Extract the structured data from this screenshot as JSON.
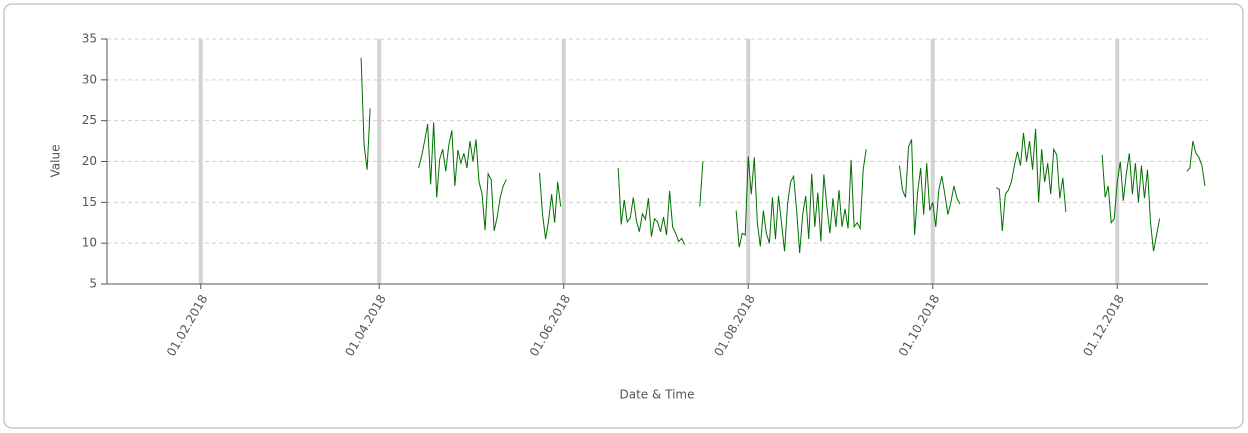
{
  "chart_data": {
    "type": "line",
    "ylabel": "Value",
    "xlabel": "Date & Time",
    "color": "#007000",
    "ylim": [
      5,
      35
    ],
    "yticks": [
      5,
      10,
      15,
      20,
      25,
      30,
      35
    ],
    "xlim": [
      "01.01.2018",
      "31.12.2018"
    ],
    "xticks": [
      "01.02.2018",
      "01.04.2018",
      "01.06.2018",
      "01.08.2018",
      "01.10.2018",
      "01.12.2018"
    ],
    "grid": true,
    "x": [
      "26.03.2018",
      "27.03.2018",
      "28.03.2018",
      "29.03.2018",
      "30.03.2018",
      "14.04.2018",
      "15.04.2018",
      "16.04.2018",
      "17.04.2018",
      "18.04.2018",
      "19.04.2018",
      "20.04.2018",
      "21.04.2018",
      "22.04.2018",
      "23.04.2018",
      "24.04.2018",
      "25.04.2018",
      "26.04.2018",
      "27.04.2018",
      "28.04.2018",
      "29.04.2018",
      "30.04.2018",
      "01.05.2018",
      "02.05.2018",
      "03.05.2018",
      "04.05.2018",
      "05.05.2018",
      "06.05.2018",
      "07.05.2018",
      "08.05.2018",
      "09.05.2018",
      "10.05.2018",
      "11.05.2018",
      "12.05.2018",
      "13.05.2018",
      "17.05.2018",
      "24.05.2018",
      "25.05.2018",
      "26.05.2018",
      "27.05.2018",
      "28.05.2018",
      "29.05.2018",
      "30.05.2018",
      "31.05.2018",
      "01.06.2018",
      "19.06.2018",
      "20.06.2018",
      "21.06.2018",
      "22.06.2018",
      "23.06.2018",
      "24.06.2018",
      "25.06.2018",
      "26.06.2018",
      "27.06.2018",
      "28.06.2018",
      "29.06.2018",
      "30.06.2018",
      "01.07.2018",
      "02.07.2018",
      "03.07.2018",
      "04.07.2018",
      "05.07.2018",
      "06.07.2018",
      "07.07.2018",
      "08.07.2018",
      "09.07.2018",
      "10.07.2018",
      "11.07.2018",
      "12.07.2018",
      "16.07.2018",
      "17.07.2018",
      "18.07.2018",
      "28.07.2018",
      "29.07.2018",
      "30.07.2018",
      "31.07.2018",
      "01.08.2018",
      "02.08.2018",
      "03.08.2018",
      "04.08.2018",
      "05.08.2018",
      "06.08.2018",
      "07.08.2018",
      "08.08.2018",
      "09.08.2018",
      "10.08.2018",
      "11.08.2018",
      "12.08.2018",
      "13.08.2018",
      "14.08.2018",
      "15.08.2018",
      "16.08.2018",
      "17.08.2018",
      "18.08.2018",
      "19.08.2018",
      "20.08.2018",
      "21.08.2018",
      "22.08.2018",
      "23.08.2018",
      "24.08.2018",
      "25.08.2018",
      "26.08.2018",
      "27.08.2018",
      "28.08.2018",
      "29.08.2018",
      "30.08.2018",
      "31.08.2018",
      "01.09.2018",
      "02.09.2018",
      "03.09.2018",
      "04.09.2018",
      "05.09.2018",
      "06.09.2018",
      "07.09.2018",
      "08.09.2018",
      "09.09.2018",
      "10.09.2018",
      "20.09.2018",
      "21.09.2018",
      "22.09.2018",
      "23.09.2018",
      "24.09.2018",
      "25.09.2018",
      "26.09.2018",
      "27.09.2018",
      "28.09.2018",
      "29.09.2018",
      "30.09.2018",
      "01.10.2018",
      "02.10.2018",
      "03.10.2018",
      "04.10.2018",
      "05.10.2018",
      "06.10.2018",
      "07.10.2018",
      "08.10.2018",
      "09.10.2018",
      "10.10.2018",
      "11.10.2018",
      "22.10.2018",
      "23.10.2018",
      "24.10.2018",
      "25.10.2018",
      "26.10.2018",
      "27.10.2018",
      "28.10.2018",
      "29.10.2018",
      "30.10.2018",
      "31.10.2018",
      "01.11.2018",
      "02.11.2018",
      "03.11.2018",
      "04.11.2018",
      "05.11.2018",
      "06.11.2018",
      "07.11.2018",
      "08.11.2018",
      "09.11.2018",
      "10.11.2018",
      "11.11.2018",
      "12.11.2018",
      "13.11.2018",
      "14.11.2018",
      "15.11.2018",
      "26.11.2018",
      "27.11.2018",
      "28.11.2018",
      "29.11.2018",
      "30.11.2018",
      "01.12.2018",
      "02.12.2018",
      "03.12.2018",
      "04.12.2018",
      "05.12.2018",
      "06.12.2018",
      "07.12.2018",
      "08.12.2018",
      "09.12.2018",
      "10.12.2018",
      "11.12.2018",
      "12.12.2018",
      "13.12.2018",
      "14.12.2018",
      "15.12.2018",
      "17.12.2018",
      "24.12.2018",
      "25.12.2018",
      "26.12.2018",
      "27.12.2018",
      "28.12.2018",
      "29.12.2018",
      "30.12.2018"
    ],
    "values": [
      32.7,
      22.0,
      19.0,
      26.5,
      null,
      19.2,
      20.6,
      22.5,
      24.6,
      17.2,
      24.8,
      15.6,
      20.3,
      21.5,
      18.8,
      22.0,
      23.8,
      17.0,
      21.4,
      19.8,
      21.0,
      19.2,
      22.5,
      20.0,
      22.7,
      17.5,
      16.0,
      11.6,
      18.5,
      17.8,
      11.5,
      13.2,
      15.6,
      17.0,
      17.8,
      null,
      18.6,
      13.5,
      10.5,
      12.8,
      16.0,
      12.5,
      17.5,
      14.5,
      null,
      19.2,
      12.3,
      15.3,
      12.6,
      13.1,
      15.6,
      12.8,
      11.4,
      13.6,
      12.9,
      15.5,
      10.8,
      13.0,
      12.6,
      11.4,
      13.2,
      11.0,
      16.4,
      12.0,
      11.2,
      10.2,
      10.6,
      9.8,
      null,
      14.5,
      20.0,
      null,
      14.0,
      9.5,
      11.2,
      11.0,
      20.6,
      16.0,
      20.5,
      12.5,
      9.6,
      14.0,
      11.2,
      10.0,
      15.6,
      10.5,
      15.8,
      12.5,
      9.0,
      14.8,
      17.5,
      18.2,
      14.0,
      8.8,
      13.5,
      15.8,
      10.5,
      18.5,
      12.0,
      16.2,
      10.2,
      18.4,
      14.5,
      11.2,
      15.5,
      12.0,
      16.5,
      12.0,
      14.2,
      11.8,
      20.2,
      12.0,
      12.5,
      11.8,
      19.0,
      21.5,
      null,
      19.5,
      16.5,
      15.6,
      21.8,
      22.7,
      11.0,
      16.2,
      19.2,
      13.5,
      19.8,
      14.0,
      15.0,
      12.0,
      16.5,
      18.2,
      16.0,
      13.5,
      15.0,
      17.0,
      15.5,
      14.8,
      null,
      16.8,
      16.6,
      11.5,
      16.0,
      16.5,
      17.5,
      19.5,
      21.2,
      19.5,
      23.5,
      20.0,
      22.5,
      19.0,
      24.0,
      15.0,
      21.5,
      17.5,
      19.8,
      16.0,
      21.5,
      20.8,
      15.5,
      18.0,
      13.8,
      null,
      20.8,
      15.6,
      17.0,
      12.5,
      13.0,
      17.5,
      20.0,
      15.2,
      18.5,
      21.0,
      16.0,
      19.8,
      15.0,
      19.5,
      15.5,
      19.0,
      12.5,
      9.0,
      11.0,
      13.0,
      null,
      18.8,
      19.2,
      22.5,
      21.0,
      20.5,
      19.5,
      17.0
    ]
  }
}
